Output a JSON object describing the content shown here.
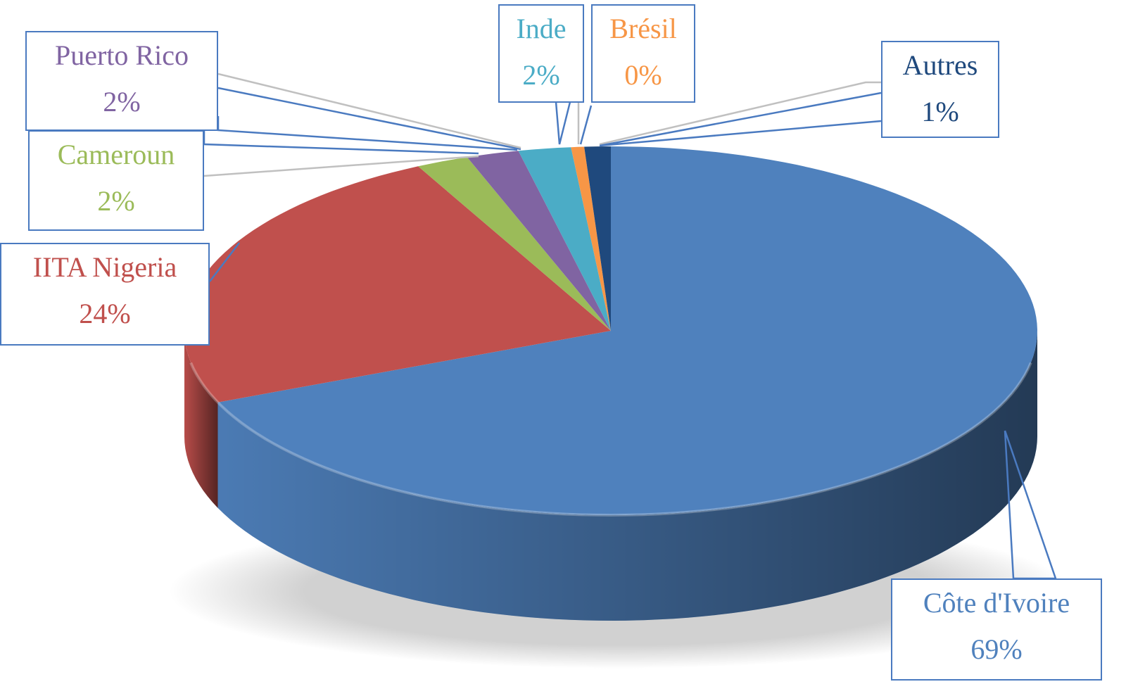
{
  "chart_data": {
    "type": "pie",
    "three_d": true,
    "start": "top, clockwise",
    "slices": [
      {
        "label": "Côte d'Ivoire",
        "value": 69,
        "display": "69%",
        "color": "#4F81BD"
      },
      {
        "label": "IITA Nigeria",
        "value": 24,
        "display": "24%",
        "color": "#C0504D"
      },
      {
        "label": "Cameroun",
        "value": 2,
        "display": "2%",
        "color": "#9BBB59"
      },
      {
        "label": "Puerto Rico",
        "value": 2,
        "display": "2%",
        "color": "#8064A2"
      },
      {
        "label": "Inde",
        "value": 2,
        "display": "2%",
        "color": "#4BACC6"
      },
      {
        "label": "Brésil",
        "value": 0,
        "display": "0%",
        "color": "#F79646"
      },
      {
        "label": "Autres",
        "value": 1,
        "display": "1%",
        "color": "#1F497D"
      }
    ]
  }
}
